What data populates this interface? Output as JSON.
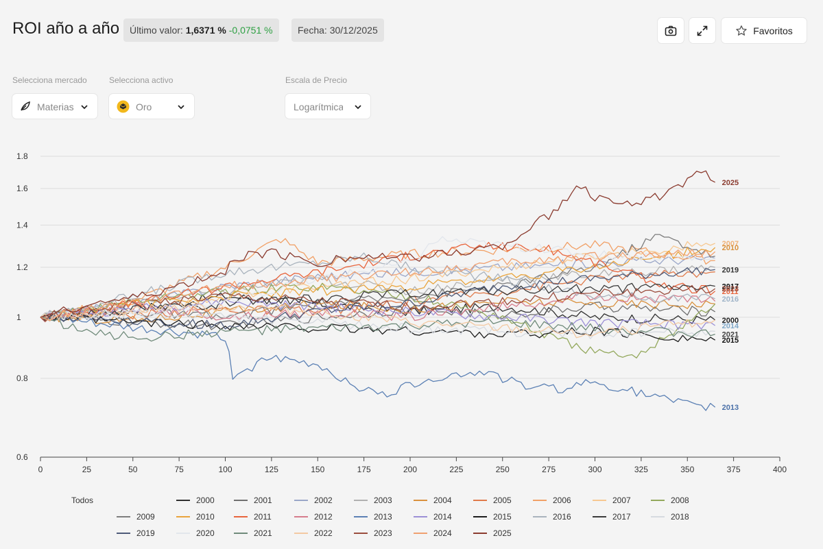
{
  "header": {
    "title": "ROI año a año",
    "last_value_label": "Último valor:",
    "last_value": "1,6371 %",
    "last_delta": "-0,0751 %",
    "date_label": "Fecha: 30/12/2025",
    "favorites_label": "Favoritos",
    "icons": [
      "camera-icon",
      "expand-icon",
      "star-icon"
    ]
  },
  "controls": {
    "market_label": "Selecciona mercado",
    "market_value": "Materias",
    "asset_label": "Selecciona activo",
    "asset_value": "Oro",
    "scale_label": "Escala de Precio",
    "scale_value": "Logarítmica"
  },
  "legend": {
    "all_label": "Todos"
  },
  "chart_data": {
    "type": "line",
    "title": "",
    "xlabel": "",
    "ylabel": "",
    "x_range": [
      0,
      400
    ],
    "y_range": [
      0.6,
      1.8
    ],
    "y_scale": "log",
    "x_ticks": [
      "0",
      "25",
      "50",
      "75",
      "100",
      "125",
      "150",
      "175",
      "200",
      "225",
      "250",
      "275",
      "300",
      "325",
      "350",
      "375",
      "400"
    ],
    "y_ticks": [
      "0.6",
      "0.8",
      "1",
      "1.2",
      "1.4",
      "1.6",
      "1.8"
    ],
    "grid": "horizontal",
    "legend_position": "bottom",
    "series": [
      {
        "name": "2000",
        "color": "#2f2f2f",
        "final": 0.99,
        "end_label": true,
        "label_color": "#222",
        "points": [
          [
            0,
            1
          ],
          [
            50,
            1.03
          ],
          [
            100,
            1.08
          ],
          [
            150,
            1.05
          ],
          [
            200,
            1.02
          ],
          [
            250,
            1.04
          ],
          [
            300,
            1.0
          ],
          [
            365,
            0.99
          ]
        ]
      },
      {
        "name": "2001",
        "color": "#6f6f6f",
        "final": 1.02,
        "points": [
          [
            0,
            1
          ],
          [
            50,
            0.98
          ],
          [
            100,
            0.97
          ],
          [
            150,
            1.0
          ],
          [
            200,
            1.03
          ],
          [
            250,
            1.01
          ],
          [
            300,
            1.04
          ],
          [
            365,
            1.02
          ]
        ]
      },
      {
        "name": "2002",
        "color": "#9aa6c8",
        "final": 1.24,
        "points": [
          [
            0,
            1
          ],
          [
            50,
            1.05
          ],
          [
            100,
            1.12
          ],
          [
            150,
            1.16
          ],
          [
            200,
            1.18
          ],
          [
            250,
            1.2
          ],
          [
            300,
            1.22
          ],
          [
            365,
            1.24
          ]
        ]
      },
      {
        "name": "2003",
        "color": "#b0b0b0",
        "final": 1.2,
        "points": [
          [
            0,
            1
          ],
          [
            50,
            1.06
          ],
          [
            100,
            1.1
          ],
          [
            150,
            1.15
          ],
          [
            200,
            1.1
          ],
          [
            250,
            1.15
          ],
          [
            300,
            1.17
          ],
          [
            365,
            1.2
          ]
        ]
      },
      {
        "name": "2004",
        "color": "#d9913d",
        "final": 1.05,
        "points": [
          [
            0,
            1
          ],
          [
            50,
            0.99
          ],
          [
            100,
            1.02
          ],
          [
            150,
            1.05
          ],
          [
            200,
            1.03
          ],
          [
            250,
            1.06
          ],
          [
            300,
            1.05
          ],
          [
            365,
            1.05
          ]
        ]
      },
      {
        "name": "2005",
        "color": "#e07a4a",
        "final": 1.18,
        "points": [
          [
            0,
            1
          ],
          [
            50,
            1.01
          ],
          [
            100,
            1.03
          ],
          [
            150,
            1.02
          ],
          [
            200,
            1.06
          ],
          [
            250,
            1.1
          ],
          [
            300,
            1.15
          ],
          [
            365,
            1.18
          ]
        ]
      },
      {
        "name": "2006",
        "color": "#f1a066",
        "final": 1.23,
        "points": [
          [
            0,
            1
          ],
          [
            50,
            1.06
          ],
          [
            100,
            1.2
          ],
          [
            130,
            1.33
          ],
          [
            150,
            1.22
          ],
          [
            200,
            1.26
          ],
          [
            250,
            1.28
          ],
          [
            300,
            1.3
          ],
          [
            365,
            1.23
          ]
        ]
      },
      {
        "name": "2007",
        "color": "#f7c891",
        "final": 1.31,
        "end_label": true,
        "label_color": "#f0b37a",
        "points": [
          [
            0,
            1
          ],
          [
            50,
            1.02
          ],
          [
            100,
            1.08
          ],
          [
            150,
            1.12
          ],
          [
            200,
            1.15
          ],
          [
            250,
            1.2
          ],
          [
            300,
            1.25
          ],
          [
            365,
            1.31
          ]
        ]
      },
      {
        "name": "2008",
        "color": "#93a85c",
        "final": 1.05,
        "points": [
          [
            0,
            1
          ],
          [
            50,
            1.06
          ],
          [
            100,
            1.1
          ],
          [
            150,
            1.12
          ],
          [
            200,
            1.08
          ],
          [
            250,
            1.0
          ],
          [
            280,
            0.92
          ],
          [
            300,
            0.88
          ],
          [
            320,
            0.86
          ],
          [
            340,
            0.94
          ],
          [
            365,
            1.05
          ]
        ]
      },
      {
        "name": "2009",
        "color": "#7d7d7d",
        "final": 1.25,
        "points": [
          [
            0,
            1
          ],
          [
            50,
            1.02
          ],
          [
            100,
            1.0
          ],
          [
            150,
            1.05
          ],
          [
            200,
            1.08
          ],
          [
            250,
            1.12
          ],
          [
            300,
            1.2
          ],
          [
            335,
            1.35
          ],
          [
            365,
            1.25
          ]
        ]
      },
      {
        "name": "2010",
        "color": "#e9a43c",
        "final": 1.29,
        "end_label": true,
        "label_color": "#d9913d",
        "points": [
          [
            0,
            1
          ],
          [
            50,
            1.05
          ],
          [
            100,
            1.08
          ],
          [
            150,
            1.1
          ],
          [
            200,
            1.12
          ],
          [
            250,
            1.15
          ],
          [
            300,
            1.2
          ],
          [
            365,
            1.29
          ]
        ]
      },
      {
        "name": "2011",
        "color": "#e8643c",
        "final": 1.1,
        "end_label": true,
        "label_color": "#e8643c",
        "points": [
          [
            0,
            1
          ],
          [
            50,
            1.05
          ],
          [
            100,
            1.12
          ],
          [
            150,
            1.18
          ],
          [
            200,
            1.25
          ],
          [
            240,
            1.3
          ],
          [
            275,
            1.28
          ],
          [
            300,
            1.22
          ],
          [
            340,
            1.12
          ],
          [
            365,
            1.1
          ]
        ]
      },
      {
        "name": "2012",
        "color": "#d67c8c",
        "final": 1.06,
        "points": [
          [
            0,
            1
          ],
          [
            50,
            1.04
          ],
          [
            100,
            1.0
          ],
          [
            150,
            1.02
          ],
          [
            200,
            1.0
          ],
          [
            250,
            1.04
          ],
          [
            300,
            1.08
          ],
          [
            365,
            1.06
          ]
        ]
      },
      {
        "name": "2013",
        "color": "#5b80b4",
        "final": 0.72,
        "end_label": true,
        "label_color": "#4a70a8",
        "points": [
          [
            0,
            1
          ],
          [
            50,
            0.96
          ],
          [
            100,
            0.93
          ],
          [
            104,
            0.81
          ],
          [
            125,
            0.86
          ],
          [
            150,
            0.84
          ],
          [
            170,
            0.78
          ],
          [
            185,
            0.75
          ],
          [
            210,
            0.8
          ],
          [
            240,
            0.82
          ],
          [
            260,
            0.78
          ],
          [
            280,
            0.77
          ],
          [
            300,
            0.79
          ],
          [
            330,
            0.75
          ],
          [
            355,
            0.72
          ],
          [
            365,
            0.72
          ]
        ]
      },
      {
        "name": "2014",
        "color": "#9b8fd6",
        "final": 0.97,
        "end_label": true,
        "label_color": "#7fa7c8",
        "points": [
          [
            0,
            1
          ],
          [
            50,
            1.03
          ],
          [
            100,
            1.06
          ],
          [
            150,
            1.04
          ],
          [
            200,
            1.02
          ],
          [
            250,
            1.0
          ],
          [
            300,
            0.98
          ],
          [
            365,
            0.97
          ]
        ]
      },
      {
        "name": "2015",
        "color": "#1c1c1c",
        "final": 0.92,
        "end_label": true,
        "label_color": "#111",
        "points": [
          [
            0,
            1
          ],
          [
            50,
            0.98
          ],
          [
            100,
            0.97
          ],
          [
            150,
            0.96
          ],
          [
            200,
            0.95
          ],
          [
            250,
            0.94
          ],
          [
            300,
            0.95
          ],
          [
            340,
            0.93
          ],
          [
            365,
            0.92
          ]
        ]
      },
      {
        "name": "2016",
        "color": "#a9b3bd",
        "final": 1.07,
        "end_label": true,
        "label_color": "#9fb4c8",
        "points": [
          [
            0,
            1
          ],
          [
            50,
            1.08
          ],
          [
            100,
            1.18
          ],
          [
            150,
            1.22
          ],
          [
            175,
            1.25
          ],
          [
            200,
            1.2
          ],
          [
            250,
            1.15
          ],
          [
            300,
            1.08
          ],
          [
            365,
            1.07
          ]
        ]
      },
      {
        "name": "2017",
        "color": "#3a3a3a",
        "final": 1.12,
        "end_label": true,
        "label_color": "#111",
        "points": [
          [
            0,
            1
          ],
          [
            50,
            1.03
          ],
          [
            100,
            1.05
          ],
          [
            150,
            1.07
          ],
          [
            200,
            1.09
          ],
          [
            250,
            1.1
          ],
          [
            300,
            1.11
          ],
          [
            365,
            1.12
          ]
        ]
      },
      {
        "name": "2018",
        "color": "#d6dae0",
        "final": 0.95,
        "points": [
          [
            0,
            1
          ],
          [
            50,
            1.01
          ],
          [
            100,
            1.0
          ],
          [
            150,
            0.98
          ],
          [
            200,
            0.96
          ],
          [
            250,
            0.95
          ],
          [
            300,
            0.94
          ],
          [
            365,
            0.95
          ]
        ]
      },
      {
        "name": "2019",
        "color": "#4d5a78",
        "final": 1.19,
        "end_label": true,
        "label_color": "#333",
        "points": [
          [
            0,
            1
          ],
          [
            50,
            0.99
          ],
          [
            100,
            0.97
          ],
          [
            150,
            1.02
          ],
          [
            200,
            1.05
          ],
          [
            250,
            1.12
          ],
          [
            300,
            1.15
          ],
          [
            365,
            1.19
          ]
        ]
      },
      {
        "name": "2020",
        "color": "#e2e6ec",
        "final": 1.24,
        "points": [
          [
            0,
            1
          ],
          [
            50,
            1.02
          ],
          [
            100,
            1.05
          ],
          [
            150,
            1.15
          ],
          [
            200,
            1.22
          ],
          [
            215,
            1.33
          ],
          [
            250,
            1.3
          ],
          [
            300,
            1.26
          ],
          [
            365,
            1.24
          ]
        ]
      },
      {
        "name": "2021",
        "color": "#6f8a7a",
        "final": 0.94,
        "end_label": true,
        "label_color": "#444",
        "points": [
          [
            0,
            1
          ],
          [
            30,
            0.94
          ],
          [
            60,
            0.93
          ],
          [
            100,
            0.95
          ],
          [
            150,
            0.96
          ],
          [
            200,
            0.97
          ],
          [
            250,
            0.98
          ],
          [
            300,
            0.96
          ],
          [
            365,
            0.94
          ]
        ]
      },
      {
        "name": "2022",
        "color": "#f3c9a2",
        "final": 0.99,
        "points": [
          [
            0,
            1
          ],
          [
            50,
            1.03
          ],
          [
            100,
            1.04
          ],
          [
            150,
            1.02
          ],
          [
            200,
            0.98
          ],
          [
            250,
            0.96
          ],
          [
            300,
            0.94
          ],
          [
            365,
            0.99
          ]
        ]
      },
      {
        "name": "2023",
        "color": "#9a4c3c",
        "final": 1.11,
        "end_label": true,
        "label_color": "#9a4c3c",
        "points": [
          [
            0,
            1
          ],
          [
            50,
            1.05
          ],
          [
            100,
            1.08
          ],
          [
            150,
            1.06
          ],
          [
            200,
            1.04
          ],
          [
            250,
            1.06
          ],
          [
            300,
            1.09
          ],
          [
            365,
            1.11
          ]
        ]
      },
      {
        "name": "2024",
        "color": "#f0a070",
        "final": 1.27,
        "points": [
          [
            0,
            1
          ],
          [
            50,
            1.05
          ],
          [
            100,
            1.12
          ],
          [
            150,
            1.15
          ],
          [
            200,
            1.18
          ],
          [
            250,
            1.22
          ],
          [
            300,
            1.25
          ],
          [
            365,
            1.27
          ]
        ]
      },
      {
        "name": "2025",
        "color": "#8a3a2e",
        "final": 1.637,
        "end_label": true,
        "label_color": "#8a3a2e",
        "points": [
          [
            0,
            1
          ],
          [
            25,
            1.05
          ],
          [
            50,
            1.07
          ],
          [
            75,
            1.12
          ],
          [
            100,
            1.18
          ],
          [
            105,
            1.24
          ],
          [
            125,
            1.27
          ],
          [
            150,
            1.22
          ],
          [
            175,
            1.25
          ],
          [
            200,
            1.24
          ],
          [
            250,
            1.3
          ],
          [
            280,
            1.48
          ],
          [
            290,
            1.62
          ],
          [
            300,
            1.55
          ],
          [
            325,
            1.52
          ],
          [
            345,
            1.6
          ],
          [
            360,
            1.72
          ],
          [
            365,
            1.637
          ]
        ]
      }
    ]
  }
}
